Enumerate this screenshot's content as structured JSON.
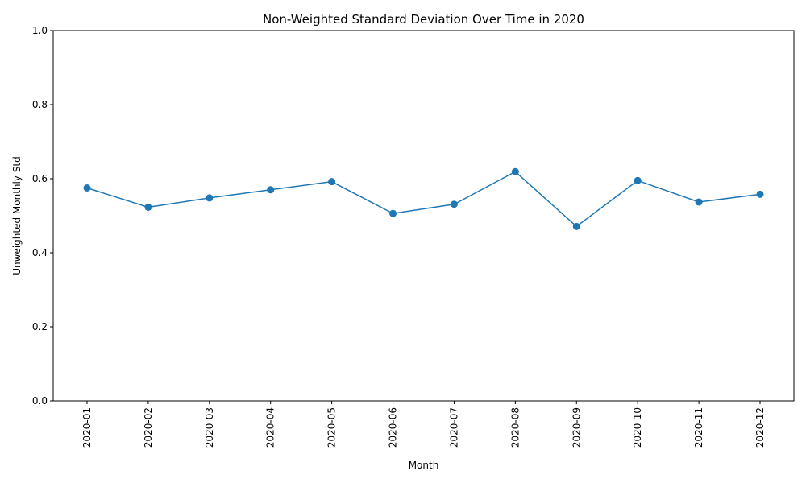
{
  "chart_data": {
    "type": "line",
    "title": "Non-Weighted Standard Deviation Over Time in 2020",
    "xlabel": "Month",
    "ylabel": "Unweighted Monthly Std",
    "categories": [
      "2020-01",
      "2020-02",
      "2020-03",
      "2020-04",
      "2020-05",
      "2020-06",
      "2020-07",
      "2020-08",
      "2020-09",
      "2020-10",
      "2020-11",
      "2020-12"
    ],
    "series": [
      {
        "values": [
          0.575,
          0.523,
          0.548,
          0.57,
          0.592,
          0.506,
          0.531,
          0.619,
          0.471,
          0.595,
          0.537,
          0.558
        ]
      }
    ],
    "ylim": [
      0,
      1
    ],
    "yticks": [
      "0.0",
      "0.2",
      "0.4",
      "0.6",
      "0.8",
      "1.0"
    ],
    "grid": false,
    "markers": true,
    "line_color": "#1f77b4"
  }
}
